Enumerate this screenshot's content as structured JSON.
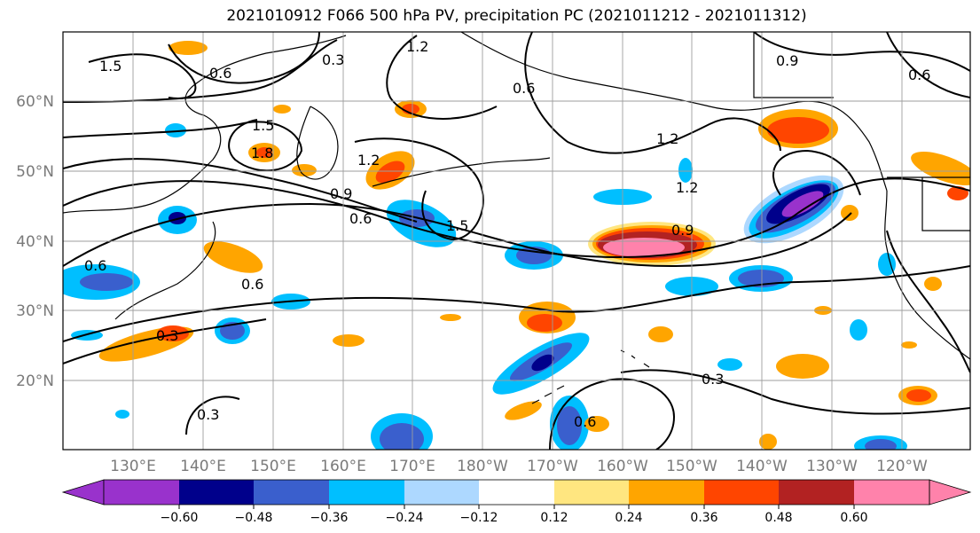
{
  "title": "2021010912 F066 500 hPa PV, precipitation PC (2021011212 - 2021011312)",
  "map": {
    "lat_labels": [
      "60°N",
      "50°N",
      "40°N",
      "30°N",
      "20°N"
    ],
    "lon_labels": [
      "130°E",
      "140°E",
      "150°E",
      "160°E",
      "170°E",
      "180°W",
      "170°W",
      "160°W",
      "150°W",
      "140°W",
      "130°W",
      "120°W"
    ],
    "contour_labels": [
      "1.5",
      "0.6",
      "0.3",
      "1.2",
      "0.9",
      "0.6",
      "1.5",
      "1.8",
      "1.2",
      "0.6",
      "0.9",
      "0.6",
      "1.2",
      "1.2",
      "0.9",
      "0.6",
      "0.3",
      "0.3",
      "0.6",
      "0.3",
      "0.6",
      "1.5"
    ]
  },
  "colorbar": {
    "ticks": [
      "−0.60",
      "−0.48",
      "−0.36",
      "−0.24",
      "−0.12",
      "0.12",
      "0.24",
      "0.36",
      "0.48",
      "0.60"
    ],
    "colors": [
      "#9932cc",
      "#00008b",
      "#3a5fcd",
      "#00bfff",
      "#add8ff",
      "#ffffff",
      "#ffe680",
      "#ffa500",
      "#ff4500",
      "#b22222",
      "#ff82ab"
    ]
  }
}
